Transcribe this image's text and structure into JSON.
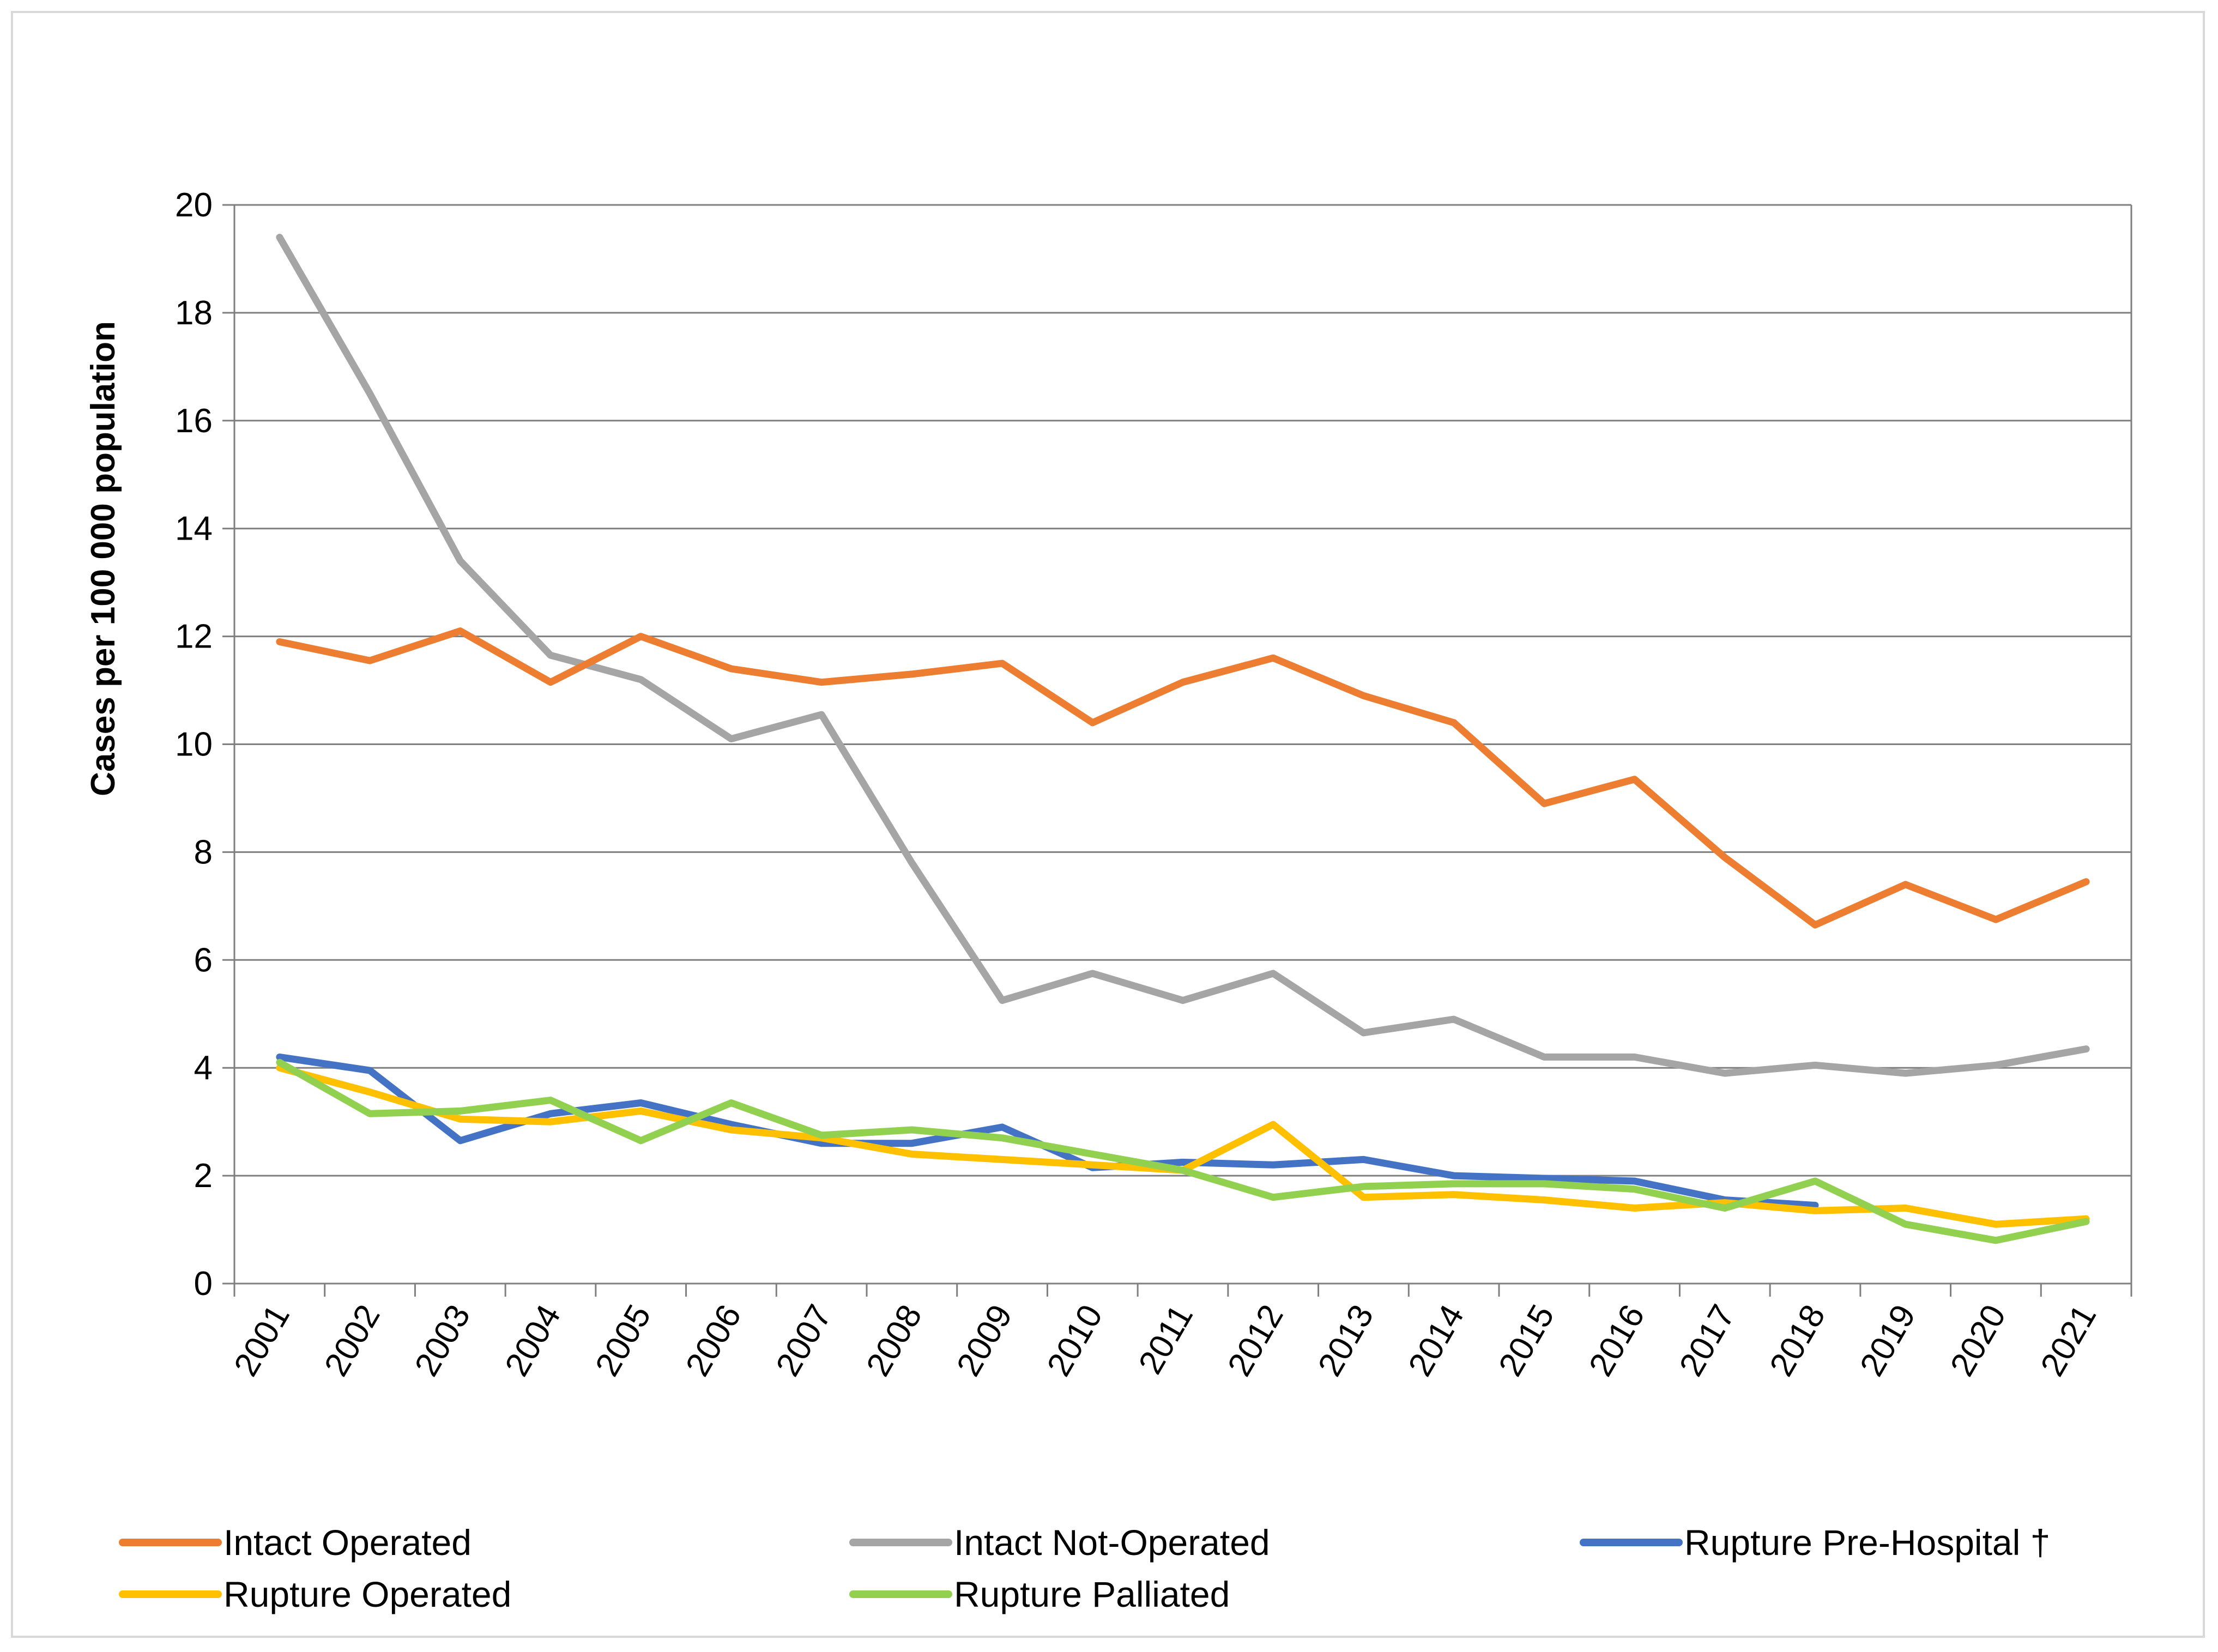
{
  "chart_data": {
    "type": "line",
    "title": "",
    "xlabel": "",
    "ylabel": "Cases per 100 000 population",
    "ylim": [
      0,
      20
    ],
    "yticks": [
      0,
      2,
      4,
      6,
      8,
      10,
      12,
      14,
      16,
      18,
      20
    ],
    "grid": true,
    "legend_position": "bottom",
    "categories": [
      "2001",
      "2002",
      "2003",
      "2004",
      "2005",
      "2006",
      "2007",
      "2008",
      "2009",
      "2010",
      "2011",
      "2012",
      "2013",
      "2014",
      "2015",
      "2016",
      "2017",
      "2018",
      "2019",
      "2020",
      "2021"
    ],
    "series": [
      {
        "name": "Intact Operated",
        "color": "#ED7D31",
        "values": [
          11.9,
          11.55,
          12.1,
          11.15,
          12.0,
          11.4,
          11.15,
          11.3,
          11.5,
          10.4,
          11.15,
          11.6,
          10.9,
          10.4,
          8.9,
          9.35,
          7.9,
          6.65,
          7.4,
          6.75,
          7.45
        ]
      },
      {
        "name": "Intact Not-Operated",
        "color": "#A5A5A5",
        "values": [
          19.4,
          16.5,
          13.4,
          11.65,
          11.2,
          10.1,
          10.55,
          7.8,
          5.25,
          5.75,
          5.25,
          5.75,
          4.65,
          4.9,
          4.2,
          4.2,
          3.9,
          4.05,
          3.9,
          4.05,
          4.35
        ]
      },
      {
        "name": "Rupture Pre-Hospital †",
        "color": "#4472C4",
        "values": [
          4.2,
          3.95,
          2.65,
          3.15,
          3.35,
          2.95,
          2.6,
          2.6,
          2.9,
          2.15,
          2.25,
          2.2,
          2.3,
          2.0,
          1.95,
          1.9,
          1.55,
          1.45,
          null,
          null,
          null
        ]
      },
      {
        "name": "Rupture Operated",
        "color": "#FFC000",
        "values": [
          4.0,
          3.55,
          3.05,
          3.0,
          3.2,
          2.85,
          2.7,
          2.4,
          2.3,
          2.2,
          2.1,
          2.95,
          1.6,
          1.65,
          1.55,
          1.4,
          1.5,
          1.35,
          1.4,
          1.1,
          1.2
        ]
      },
      {
        "name": "Rupture Palliated",
        "color": "#92D050",
        "values": [
          4.1,
          3.15,
          3.2,
          3.4,
          2.65,
          3.35,
          2.75,
          2.85,
          2.7,
          2.4,
          2.1,
          1.6,
          1.8,
          1.85,
          1.85,
          1.75,
          1.4,
          1.9,
          1.1,
          0.8,
          1.15
        ]
      }
    ]
  }
}
